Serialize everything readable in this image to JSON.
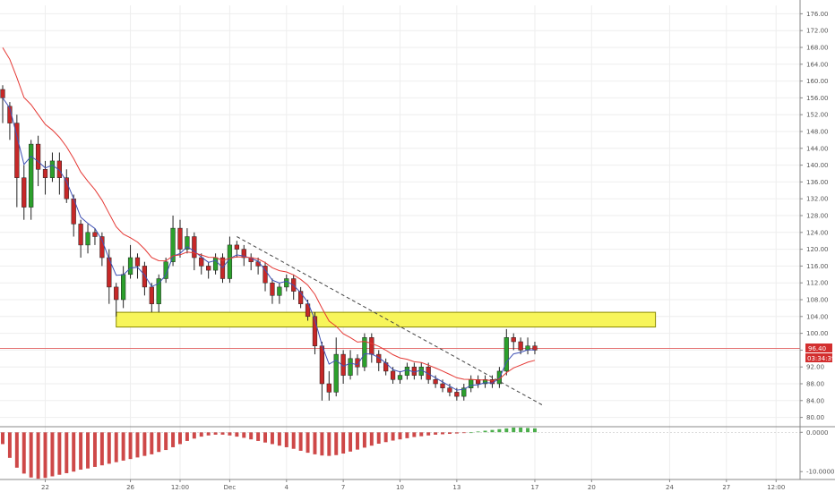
{
  "chart_data": [
    {
      "type": "candlestick",
      "y_ticks": [
        "176.00",
        "172.00",
        "168.00",
        "164.00",
        "160.00",
        "156.00",
        "152.00",
        "148.00",
        "144.00",
        "140.00",
        "136.00",
        "132.00",
        "128.00",
        "124.00",
        "120.00",
        "116.00",
        "112.00",
        "108.00",
        "104.00",
        "100.00",
        "96.00",
        "92.00",
        "88.00",
        "84.00",
        "80.00"
      ],
      "ylim": [
        78,
        178
      ],
      "x_ticks": [
        {
          "label": "22",
          "i": 6
        },
        {
          "label": "26",
          "i": 18
        },
        {
          "label": "12:00",
          "i": 25
        },
        {
          "label": "Dec",
          "i": 32
        },
        {
          "label": "4",
          "i": 40
        },
        {
          "label": "7",
          "i": 48
        },
        {
          "label": "10",
          "i": 56
        },
        {
          "label": "13",
          "i": 64
        },
        {
          "label": "17",
          "i": 75
        },
        {
          "label": "20",
          "i": 83
        },
        {
          "label": "24",
          "i": 94
        },
        {
          "label": "27",
          "i": 102
        },
        {
          "label": "12:00",
          "i": 109
        }
      ],
      "x_index_range": [
        0,
        112
      ],
      "colors": {
        "up": "#2ca02c",
        "down": "#c62828",
        "wick": "#222222",
        "ma_fast": "#3f51b5",
        "ma_slow": "#e53935",
        "grid": "#eeeeee",
        "price_line": "#e57373",
        "zone_fill": "#f7f55a",
        "zone_stroke": "#8a8a00",
        "trend": "#444444",
        "tag_price": "#d32f2f"
      },
      "candles": [
        [
          158,
          156,
          159,
          150
        ],
        [
          154,
          150,
          155,
          146
        ],
        [
          150,
          137,
          152,
          130
        ],
        [
          137,
          130,
          140,
          127
        ],
        [
          130,
          145,
          146,
          127
        ],
        [
          145,
          139,
          147,
          135
        ],
        [
          139,
          137,
          141,
          133
        ],
        [
          137,
          141,
          143,
          136
        ],
        [
          141,
          137,
          143,
          133
        ],
        [
          137,
          132,
          139,
          131
        ],
        [
          132,
          126,
          133,
          123
        ],
        [
          126,
          121,
          127,
          118
        ],
        [
          121,
          124,
          126,
          119
        ],
        [
          124,
          123,
          125,
          121
        ],
        [
          123,
          118,
          124,
          116
        ],
        [
          118,
          111,
          120,
          107
        ],
        [
          111,
          108,
          112,
          104
        ],
        [
          108,
          114,
          116,
          106
        ],
        [
          114,
          118,
          121,
          113
        ],
        [
          118,
          116,
          119,
          113
        ],
        [
          116,
          111,
          117,
          109
        ],
        [
          111,
          107,
          112,
          105
        ],
        [
          107,
          113,
          114,
          105
        ],
        [
          113,
          117,
          118,
          112
        ],
        [
          117,
          125,
          128,
          116
        ],
        [
          125,
          120,
          127,
          118
        ],
        [
          120,
          123,
          125,
          119
        ],
        [
          123,
          118,
          124,
          115
        ],
        [
          118,
          116,
          119,
          114
        ],
        [
          116,
          115,
          117,
          113
        ],
        [
          115,
          118,
          119,
          114
        ],
        [
          118,
          113,
          119,
          112
        ],
        [
          113,
          121,
          123,
          112
        ],
        [
          121,
          120,
          122,
          118
        ],
        [
          120,
          118,
          121,
          116
        ],
        [
          118,
          117,
          119,
          115
        ],
        [
          117,
          116,
          118,
          114
        ],
        [
          116,
          112,
          117,
          110
        ],
        [
          112,
          109,
          113,
          107
        ],
        [
          109,
          111,
          112,
          107
        ],
        [
          111,
          113,
          114,
          110
        ],
        [
          113,
          110,
          114,
          108
        ],
        [
          110,
          107,
          111,
          106
        ],
        [
          107,
          104,
          108,
          103
        ],
        [
          104,
          97,
          105,
          95
        ],
        [
          97,
          88,
          98,
          84
        ],
        [
          88,
          86,
          91,
          84
        ],
        [
          86,
          95,
          99,
          85
        ],
        [
          95,
          90,
          96,
          88
        ],
        [
          90,
          94,
          96,
          89
        ],
        [
          94,
          92,
          95,
          90
        ],
        [
          92,
          99,
          100,
          91
        ],
        [
          99,
          95,
          100,
          93
        ],
        [
          95,
          93,
          96,
          91
        ],
        [
          93,
          91,
          94,
          90
        ],
        [
          91,
          89,
          92,
          88
        ],
        [
          89,
          90,
          91,
          88
        ],
        [
          90,
          92,
          93,
          89
        ],
        [
          92,
          90,
          93,
          89
        ],
        [
          90,
          92,
          93,
          89
        ],
        [
          92,
          89,
          93,
          88
        ],
        [
          89,
          88,
          90,
          87
        ],
        [
          88,
          87,
          89,
          86
        ],
        [
          87,
          86,
          88,
          85
        ],
        [
          86,
          85,
          87,
          84
        ],
        [
          85,
          87,
          88,
          84
        ],
        [
          87,
          89,
          90,
          86
        ],
        [
          89,
          88,
          90,
          87
        ],
        [
          88,
          89,
          90,
          87
        ],
        [
          89,
          88,
          90,
          87
        ],
        [
          88,
          91,
          92,
          87
        ],
        [
          91,
          99,
          101,
          90
        ],
        [
          99,
          98,
          100,
          96
        ],
        [
          98,
          96,
          99,
          95
        ],
        [
          96,
          97,
          99,
          95
        ],
        [
          97,
          96,
          98,
          95
        ]
      ],
      "indicator": {
        "type": "histogram",
        "y_ticks": [
          "0.0000",
          "-10.0000"
        ],
        "ylim": [
          -12,
          1.2
        ],
        "values": [
          -3.0,
          -6.5,
          -9.0,
          -10.5,
          -11.5,
          -11.8,
          -11.6,
          -11.2,
          -10.8,
          -10.4,
          -10.0,
          -9.5,
          -9.2,
          -8.8,
          -8.4,
          -8.0,
          -7.6,
          -7.2,
          -6.8,
          -6.4,
          -6.0,
          -5.6,
          -5.0,
          -4.5,
          -3.8,
          -3.0,
          -2.2,
          -1.6,
          -1.1,
          -0.8,
          -0.6,
          -0.6,
          -0.8,
          -1.1,
          -1.4,
          -1.8,
          -2.2,
          -2.6,
          -3.0,
          -3.4,
          -3.8,
          -4.2,
          -4.7,
          -5.2,
          -5.6,
          -5.9,
          -6.0,
          -5.8,
          -5.4,
          -4.9,
          -4.4,
          -3.9,
          -3.4,
          -2.9,
          -2.5,
          -2.1,
          -1.8,
          -1.5,
          -1.2,
          -1.0,
          -0.8,
          -0.6,
          -0.5,
          -0.4,
          -0.3,
          -0.2,
          0.0,
          0.2,
          0.4,
          0.6,
          0.8,
          1.0,
          1.2,
          1.2,
          1.1,
          1.0
        ]
      }
    }
  ],
  "current_price_tag": "96.40",
  "countdown_tag": "03:34:39",
  "current_price_value": 96.4
}
